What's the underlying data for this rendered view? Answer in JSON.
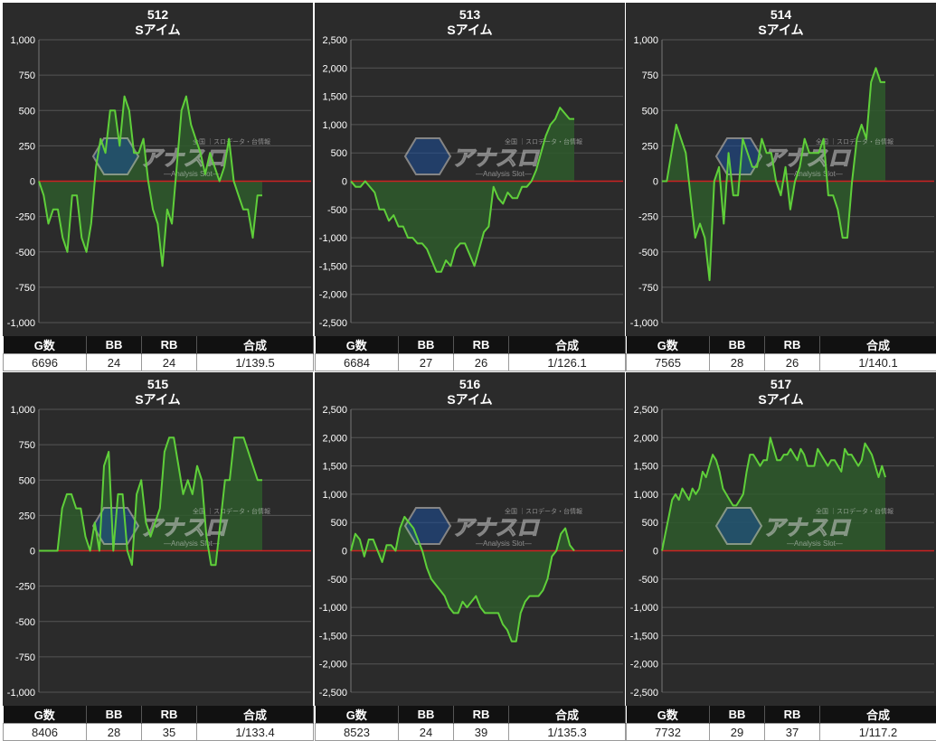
{
  "panels": [
    {
      "number": "512",
      "model": "Sアイム",
      "headers": [
        "G数",
        "BB",
        "RB",
        "合成"
      ],
      "values": [
        "6696",
        "24",
        "24",
        "1/139.5"
      ]
    },
    {
      "number": "513",
      "model": "Sアイム",
      "headers": [
        "G数",
        "BB",
        "RB",
        "合成"
      ],
      "values": [
        "6684",
        "27",
        "26",
        "1/126.1"
      ]
    },
    {
      "number": "514",
      "model": "Sアイム",
      "headers": [
        "G数",
        "BB",
        "RB",
        "合成"
      ],
      "values": [
        "7565",
        "28",
        "26",
        "1/140.1"
      ]
    },
    {
      "number": "515",
      "model": "Sアイム",
      "headers": [
        "G数",
        "BB",
        "RB",
        "合成"
      ],
      "values": [
        "8406",
        "28",
        "35",
        "1/133.4"
      ]
    },
    {
      "number": "516",
      "model": "Sアイム",
      "headers": [
        "G数",
        "BB",
        "RB",
        "合成"
      ],
      "values": [
        "8523",
        "24",
        "39",
        "1/135.3"
      ]
    },
    {
      "number": "517",
      "model": "Sアイム",
      "headers": [
        "G数",
        "BB",
        "RB",
        "合成"
      ],
      "values": [
        "7732",
        "29",
        "37",
        "1/117.2"
      ]
    }
  ],
  "watermark": {
    "main": "アナスロ",
    "sub": "—Analysis Slot—",
    "top": "全国 ｜スロデータ・台情報"
  },
  "colors": {
    "line": "#5fcf3a",
    "fill": "#2e5a2b",
    "zero_line": "#cc2222",
    "background": "#2b2b2b",
    "grid": "#555555"
  },
  "chart_data": [
    {
      "type": "area",
      "title": "512",
      "subtitle": "Sアイム",
      "ylim": [
        -1000,
        1000
      ],
      "yticks": [
        -1000,
        -750,
        -500,
        -250,
        0,
        250,
        500,
        750,
        1000
      ],
      "ytick_labels": [
        "-1,000",
        "-750",
        "-500",
        "-250",
        "0",
        "250",
        "500",
        "750",
        "1,000"
      ],
      "x": [
        0,
        1,
        2,
        3,
        4,
        5,
        6,
        7,
        8,
        9,
        10,
        11,
        12,
        13,
        14,
        15,
        16,
        17,
        18,
        19,
        20,
        21,
        22,
        23,
        24,
        25,
        26,
        27,
        28,
        29,
        30,
        31,
        32,
        33,
        34,
        35,
        36,
        37,
        38,
        39,
        40,
        41,
        42,
        43,
        44,
        45,
        46,
        47
      ],
      "values": [
        0,
        -100,
        -300,
        -200,
        -200,
        -400,
        -500,
        -100,
        -100,
        -400,
        -500,
        -300,
        100,
        300,
        200,
        500,
        500,
        250,
        600,
        500,
        200,
        200,
        300,
        0,
        -200,
        -300,
        -600,
        -200,
        -300,
        100,
        500,
        600,
        400,
        300,
        200,
        50,
        200,
        100,
        0,
        100,
        300,
        0,
        -100,
        -200,
        -200,
        -400,
        -100,
        -100
      ]
    },
    {
      "type": "area",
      "title": "513",
      "subtitle": "Sアイム",
      "ylim": [
        -2500,
        2500
      ],
      "yticks": [
        -2500,
        -2000,
        -1500,
        -1000,
        -500,
        0,
        500,
        1000,
        1500,
        2000,
        2500
      ],
      "ytick_labels": [
        "-2,500",
        "-2,000",
        "-1,500",
        "-1,000",
        "-500",
        "0",
        "500",
        "1,000",
        "1,500",
        "2,000",
        "2,500"
      ],
      "x": [
        0,
        1,
        2,
        3,
        4,
        5,
        6,
        7,
        8,
        9,
        10,
        11,
        12,
        13,
        14,
        15,
        16,
        17,
        18,
        19,
        20,
        21,
        22,
        23,
        24,
        25,
        26,
        27,
        28,
        29,
        30,
        31,
        32,
        33,
        34,
        35,
        36,
        37,
        38,
        39,
        40,
        41,
        42,
        43,
        44,
        45,
        46,
        47
      ],
      "values": [
        0,
        -100,
        -100,
        0,
        -100,
        -200,
        -500,
        -500,
        -700,
        -600,
        -800,
        -800,
        -1000,
        -1000,
        -1100,
        -1100,
        -1200,
        -1400,
        -1600,
        -1600,
        -1400,
        -1500,
        -1200,
        -1100,
        -1100,
        -1300,
        -1500,
        -1200,
        -900,
        -800,
        -100,
        -300,
        -400,
        -200,
        -300,
        -300,
        -100,
        -100,
        0,
        200,
        500,
        800,
        1000,
        1100,
        1300,
        1200,
        1100,
        1100
      ]
    },
    {
      "type": "area",
      "title": "514",
      "subtitle": "Sアイム",
      "ylim": [
        -1000,
        1000
      ],
      "yticks": [
        -1000,
        -750,
        -500,
        -250,
        0,
        250,
        500,
        750,
        1000
      ],
      "ytick_labels": [
        "-1,000",
        "-750",
        "-500",
        "-250",
        "0",
        "250",
        "500",
        "750",
        "1,000"
      ],
      "x": [
        0,
        1,
        2,
        3,
        4,
        5,
        6,
        7,
        8,
        9,
        10,
        11,
        12,
        13,
        14,
        15,
        16,
        17,
        18,
        19,
        20,
        21,
        22,
        23,
        24,
        25,
        26,
        27,
        28,
        29,
        30,
        31,
        32,
        33,
        34,
        35,
        36,
        37,
        38,
        39,
        40,
        41,
        42,
        43,
        44,
        45,
        46,
        47
      ],
      "values": [
        0,
        0,
        200,
        400,
        300,
        200,
        -100,
        -400,
        -300,
        -400,
        -700,
        0,
        100,
        -300,
        200,
        -100,
        -100,
        300,
        200,
        100,
        100,
        300,
        200,
        200,
        0,
        -100,
        100,
        -200,
        0,
        100,
        300,
        200,
        200,
        200,
        300,
        -100,
        -100,
        -200,
        -400,
        -400,
        0,
        300,
        400,
        300,
        700,
        800,
        700,
        700
      ]
    },
    {
      "type": "area",
      "title": "515",
      "subtitle": "Sアイム",
      "ylim": [
        -1000,
        1000
      ],
      "yticks": [
        -1000,
        -750,
        -500,
        -250,
        0,
        250,
        500,
        750,
        1000
      ],
      "ytick_labels": [
        "-1,000",
        "-750",
        "-500",
        "-250",
        "0",
        "250",
        "500",
        "750",
        "1,000"
      ],
      "x": [
        0,
        1,
        2,
        3,
        4,
        5,
        6,
        7,
        8,
        9,
        10,
        11,
        12,
        13,
        14,
        15,
        16,
        17,
        18,
        19,
        20,
        21,
        22,
        23,
        24,
        25,
        26,
        27,
        28,
        29,
        30,
        31,
        32,
        33,
        34,
        35,
        36,
        37,
        38,
        39,
        40,
        41,
        42,
        43,
        44,
        45,
        46,
        47,
        48
      ],
      "values": [
        0,
        0,
        0,
        0,
        0,
        300,
        400,
        400,
        300,
        300,
        100,
        0,
        200,
        0,
        600,
        700,
        0,
        400,
        400,
        0,
        -100,
        400,
        500,
        200,
        100,
        200,
        300,
        700,
        800,
        800,
        600,
        400,
        500,
        400,
        600,
        500,
        100,
        -100,
        -100,
        200,
        500,
        500,
        800,
        800,
        800,
        700,
        600,
        500,
        500
      ]
    },
    {
      "type": "area",
      "title": "516",
      "subtitle": "Sアイム",
      "ylim": [
        -2500,
        2500
      ],
      "yticks": [
        -2500,
        -2000,
        -1500,
        -1000,
        -500,
        0,
        500,
        1000,
        1500,
        2000,
        2500
      ],
      "ytick_labels": [
        "-2,500",
        "-2,000",
        "-1,500",
        "-1,000",
        "-500",
        "0",
        "500",
        "1,000",
        "1,500",
        "2,000",
        "2,500"
      ],
      "x": [
        0,
        1,
        2,
        3,
        4,
        5,
        6,
        7,
        8,
        9,
        10,
        11,
        12,
        13,
        14,
        15,
        16,
        17,
        18,
        19,
        20,
        21,
        22,
        23,
        24,
        25,
        26,
        27,
        28,
        29,
        30,
        31,
        32,
        33,
        34,
        35,
        36,
        37,
        38,
        39,
        40,
        41,
        42,
        43,
        44,
        45,
        46,
        47,
        48,
        49,
        50
      ],
      "values": [
        0,
        300,
        200,
        -100,
        200,
        200,
        0,
        -200,
        100,
        100,
        0,
        400,
        600,
        500,
        400,
        200,
        0,
        -300,
        -500,
        -600,
        -700,
        -800,
        -1000,
        -1100,
        -1100,
        -900,
        -1000,
        -900,
        -800,
        -1000,
        -1100,
        -1100,
        -1100,
        -1100,
        -1300,
        -1400,
        -1600,
        -1600,
        -1100,
        -900,
        -800,
        -800,
        -800,
        -700,
        -500,
        -100,
        0,
        300,
        400,
        100,
        0
      ]
    },
    {
      "type": "area",
      "title": "517",
      "subtitle": "Sアイム",
      "ylim": [
        -2500,
        2500
      ],
      "yticks": [
        -2500,
        -2000,
        -1500,
        -1000,
        -500,
        0,
        500,
        1000,
        1500,
        2000,
        2500
      ],
      "ytick_labels": [
        "-2,500",
        "-2,000",
        "-1,500",
        "-1,000",
        "-500",
        "0",
        "500",
        "1,000",
        "1,500",
        "2,000",
        "2,500"
      ],
      "x": [
        0,
        1,
        2,
        3,
        4,
        5,
        6,
        7,
        8,
        9,
        10,
        11,
        12,
        13,
        14,
        15,
        16,
        17,
        18,
        19,
        20,
        21,
        22,
        23,
        24,
        25,
        26,
        27,
        28,
        29,
        30,
        31,
        32,
        33,
        34,
        35,
        36,
        37,
        38,
        39,
        40,
        41,
        42,
        43,
        44,
        45,
        46,
        47,
        48,
        49,
        50,
        51,
        52,
        53,
        54,
        55,
        56,
        57,
        58,
        59,
        60,
        61,
        62,
        63,
        64,
        65,
        66
      ],
      "values": [
        0,
        300,
        600,
        900,
        1000,
        900,
        1100,
        1000,
        900,
        1100,
        1000,
        1100,
        1400,
        1300,
        1500,
        1700,
        1600,
        1400,
        1100,
        1000,
        900,
        800,
        800,
        900,
        1000,
        1400,
        1700,
        1700,
        1600,
        1500,
        1600,
        1600,
        2000,
        1800,
        1600,
        1600,
        1700,
        1700,
        1800,
        1700,
        1600,
        1800,
        1700,
        1500,
        1500,
        1500,
        1800,
        1700,
        1600,
        1500,
        1600,
        1600,
        1500,
        1400,
        1800,
        1700,
        1700,
        1600,
        1500,
        1600,
        1900,
        1800,
        1700,
        1500,
        1300,
        1500,
        1300
      ]
    }
  ]
}
